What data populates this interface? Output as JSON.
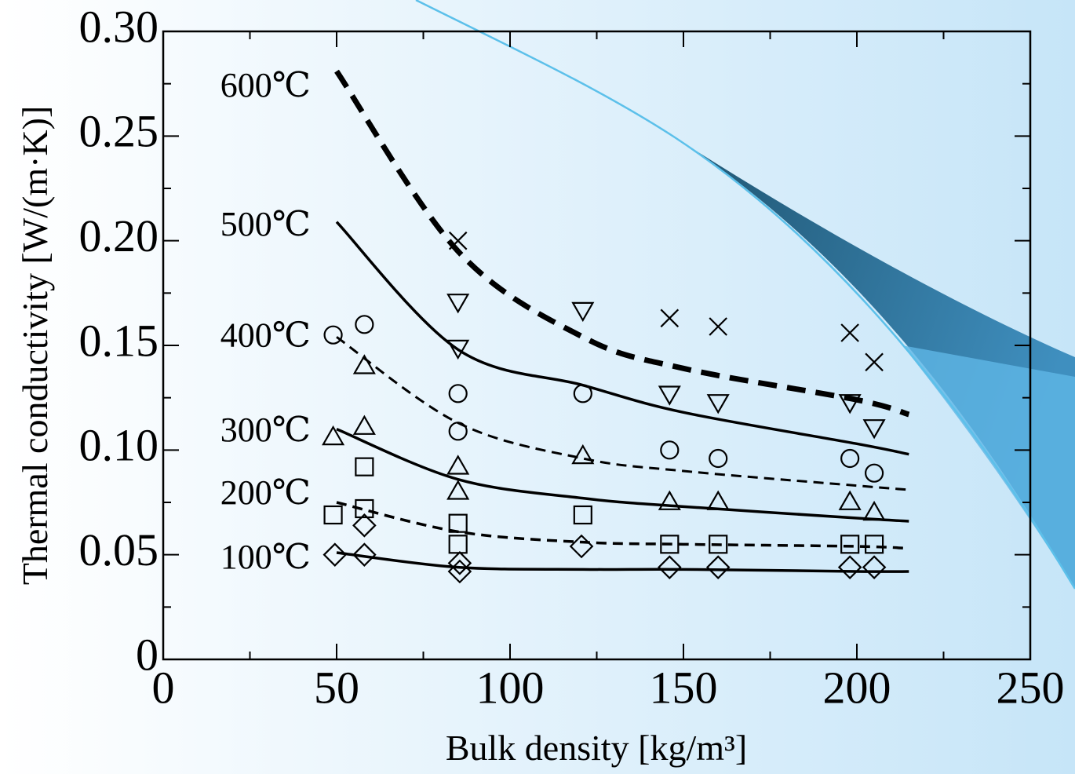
{
  "chart_data": {
    "type": "scatter",
    "x_label": "Bulk density [kg/m³]",
    "y_label": "Thermal conductivity [W/(m·K)]",
    "xlim": [
      0,
      250
    ],
    "ylim": [
      0,
      0.3
    ],
    "xticks": [
      0,
      50,
      100,
      150,
      200,
      250
    ],
    "yticks": [
      0,
      0.05,
      {
        "value": 0.1,
        "label": "0.10"
      },
      0.15,
      {
        "value": 0.2,
        "label": "0.20"
      },
      0.25,
      {
        "value": 0.3,
        "label": "0.30"
      }
    ],
    "xminorticks": [
      25,
      75,
      125,
      175,
      225
    ],
    "yminorticks": [
      0.025,
      0.075,
      0.125,
      0.175,
      0.225,
      0.275
    ],
    "color": "#000000",
    "series": [
      {
        "name": "100℃",
        "marker": "diamond",
        "dash": false,
        "line_width": 3.5,
        "x": [
          49.5,
          58,
          58,
          85.5,
          85.5,
          120.6,
          146,
          160,
          198,
          205
        ],
        "values": [
          0.05,
          0.05,
          0.064,
          0.046,
          0.042,
          0.054,
          0.044,
          0.044,
          0.044,
          0.044
        ],
        "fit_x": [
          50,
          85,
          121,
          150,
          200,
          215
        ],
        "fit_values": [
          0.051,
          0.044,
          0.043,
          0.043,
          0.042,
          0.042
        ]
      },
      {
        "name": "200℃",
        "marker": "square",
        "dash": true,
        "line_width": 3.5,
        "x": [
          49,
          58,
          58,
          85,
          85,
          121,
          146,
          160,
          198,
          205
        ],
        "values": [
          0.069,
          0.092,
          0.072,
          0.065,
          0.055,
          0.069,
          0.055,
          0.055,
          0.055,
          0.055
        ],
        "fit_x": [
          50,
          85,
          121,
          150,
          200,
          215
        ],
        "fit_values": [
          0.075,
          0.061,
          0.056,
          0.055,
          0.054,
          0.053
        ]
      },
      {
        "name": "300℃",
        "marker": "triangle-up",
        "dash": false,
        "line_width": 3.5,
        "x": [
          49,
          58,
          58,
          85,
          85,
          121,
          146,
          160,
          198,
          205
        ],
        "values": [
          0.106,
          0.14,
          0.111,
          0.092,
          0.08,
          0.097,
          0.075,
          0.075,
          0.075,
          0.07
        ],
        "fit_x": [
          50,
          85,
          121,
          150,
          200,
          215
        ],
        "fit_values": [
          0.11,
          0.086,
          0.077,
          0.073,
          0.0675,
          0.066
        ]
      },
      {
        "name": "400℃",
        "marker": "circle",
        "dash": true,
        "line_width": 3,
        "x": [
          49,
          58,
          85,
          85,
          121,
          146,
          160,
          198,
          205
        ],
        "values": [
          0.155,
          0.16,
          0.127,
          0.109,
          0.127,
          0.1,
          0.096,
          0.096,
          0.089
        ],
        "fit_x": [
          50,
          85,
          121,
          150,
          200,
          215
        ],
        "fit_values": [
          0.154,
          0.113,
          0.096,
          0.09,
          0.083,
          0.081
        ]
      },
      {
        "name": "500℃",
        "marker": "triangle-down",
        "dash": false,
        "line_width": 3.5,
        "x": [
          85,
          85,
          121,
          146,
          160,
          198,
          205
        ],
        "values": [
          0.171,
          0.149,
          0.167,
          0.127,
          0.123,
          0.123,
          0.111
        ],
        "fit_x": [
          50,
          85,
          121,
          150,
          200,
          215
        ],
        "fit_values": [
          0.209,
          0.148,
          0.131,
          0.118,
          0.103,
          0.098
        ]
      },
      {
        "name": "600℃",
        "marker": "cross",
        "dash": true,
        "line_width": 7,
        "x": [
          85,
          146,
          160,
          198,
          205
        ],
        "values": [
          0.2,
          0.163,
          0.159,
          0.156,
          0.142
        ],
        "fit_x": [
          50,
          85,
          121,
          150,
          200,
          215
        ],
        "fit_values": [
          0.281,
          0.195,
          0.154,
          0.139,
          0.124,
          0.117
        ]
      }
    ]
  }
}
